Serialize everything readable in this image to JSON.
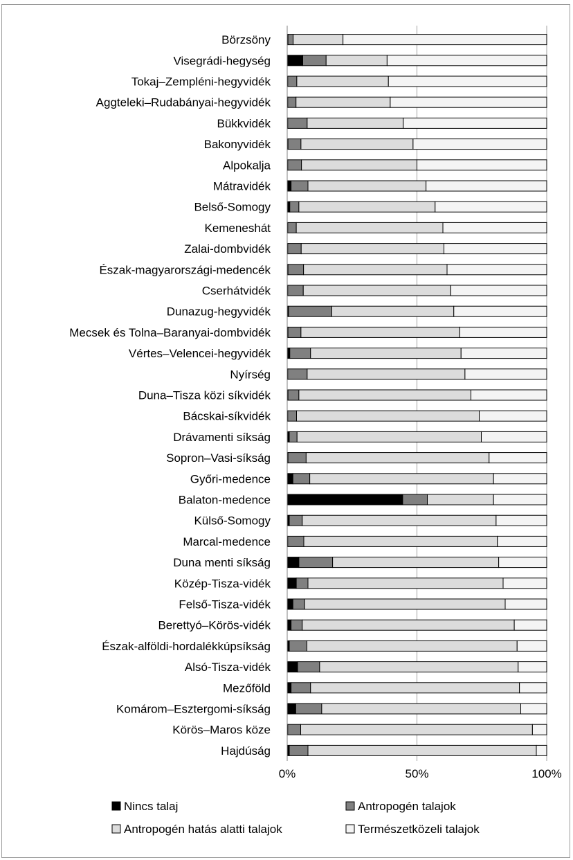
{
  "chart_data": {
    "type": "bar",
    "orientation": "horizontal",
    "stacked": true,
    "percent": true,
    "xlim": [
      0,
      100
    ],
    "xticks": [
      "0%",
      "50%",
      "100%"
    ],
    "grid": "vertical",
    "legend_position": "bottom",
    "categories": [
      "Börzsöny",
      "Visegrádi-hegység",
      "Tokaj–Zempléni-hegyvidék",
      "Aggteleki–Rudabányai-hegyvidék",
      "Bükkvidék",
      "Bakonyvidék",
      "Alpokalja",
      "Mátravidék",
      "Belső-Somogy",
      "Kemeneshát",
      "Zalai-dombvidék",
      "Észak-magyarországi-medencék",
      "Cserhátvidék",
      "Dunazug-hegyvidék",
      "Mecsek és Tolna–Baranyai-dombvidék",
      "Vértes–Velencei-hegyvidék",
      "Nyírség",
      "Duna–Tisza közi síkvidék",
      "Bácskai-síkvidék",
      "Drávamenti síkság",
      "Sopron–Vasi-síkság",
      "Győri-medence",
      "Balaton-medence",
      "Külső-Somogy",
      "Marcal-medence",
      "Duna menti síkság",
      "Közép-Tisza-vidék",
      "Felső-Tisza-vidék",
      "Berettyó–Körös-vidék",
      "Észak-alföldi-hordalékkúpsíkság",
      "Alsó-Tisza-vidék",
      "Mezőföld",
      "Komárom–Esztergomi-síkság",
      "Körös–Maros köze",
      "Hajdúság"
    ],
    "series": [
      {
        "name": "Nincs talaj",
        "color": "#000000",
        "values": [
          0.3,
          6,
          0.2,
          0.2,
          0.2,
          0.3,
          0.2,
          1.5,
          1,
          0.2,
          0.2,
          0.3,
          0.2,
          0.5,
          0.3,
          1,
          0.2,
          0.3,
          0.2,
          0.8,
          0.3,
          2.2,
          44.5,
          0.8,
          0.2,
          4.5,
          3.5,
          2.2,
          1.5,
          0.8,
          4,
          1.5,
          3.3,
          0.2,
          0.8
        ]
      },
      {
        "name": "Antropogén talajok",
        "color": "#808080",
        "values": [
          2,
          9,
          3.5,
          3.2,
          7.5,
          5,
          5.3,
          6.5,
          3.5,
          3.3,
          5.2,
          6,
          6,
          16.7,
          5,
          8,
          7.5,
          4.2,
          3.4,
          3,
          7,
          6.5,
          9.5,
          5,
          6.2,
          13,
          4.5,
          4.5,
          4.3,
          6.8,
          8.5,
          7.5,
          10,
          5,
          7.2
        ]
      },
      {
        "name": "Antropogén hatás alatti talajok",
        "color": "#dcdcdc",
        "values": [
          19.2,
          23.5,
          35.3,
          36.3,
          37,
          43.2,
          44.5,
          45.5,
          52.5,
          56.5,
          55,
          55.3,
          56.8,
          47,
          61.2,
          58,
          60.8,
          66.3,
          70.4,
          71,
          70.5,
          70.8,
          25.5,
          74.7,
          74.6,
          64,
          75.2,
          77.3,
          81.7,
          81,
          76.5,
          80.5,
          76.7,
          89.3,
          88
        ]
      },
      {
        "name": "Természetközeli talajok",
        "color": "#f4f4f4",
        "values": [
          78.5,
          61.5,
          61,
          60.3,
          55.3,
          51.5,
          50,
          46.5,
          43,
          40,
          39.6,
          38.4,
          37,
          35.8,
          33.5,
          33,
          31.5,
          29.2,
          26,
          25.2,
          22.2,
          20.5,
          20.5,
          19.5,
          19,
          18.5,
          16.8,
          16,
          12.5,
          11.4,
          11,
          10.5,
          10,
          5.5,
          4
        ]
      }
    ]
  }
}
